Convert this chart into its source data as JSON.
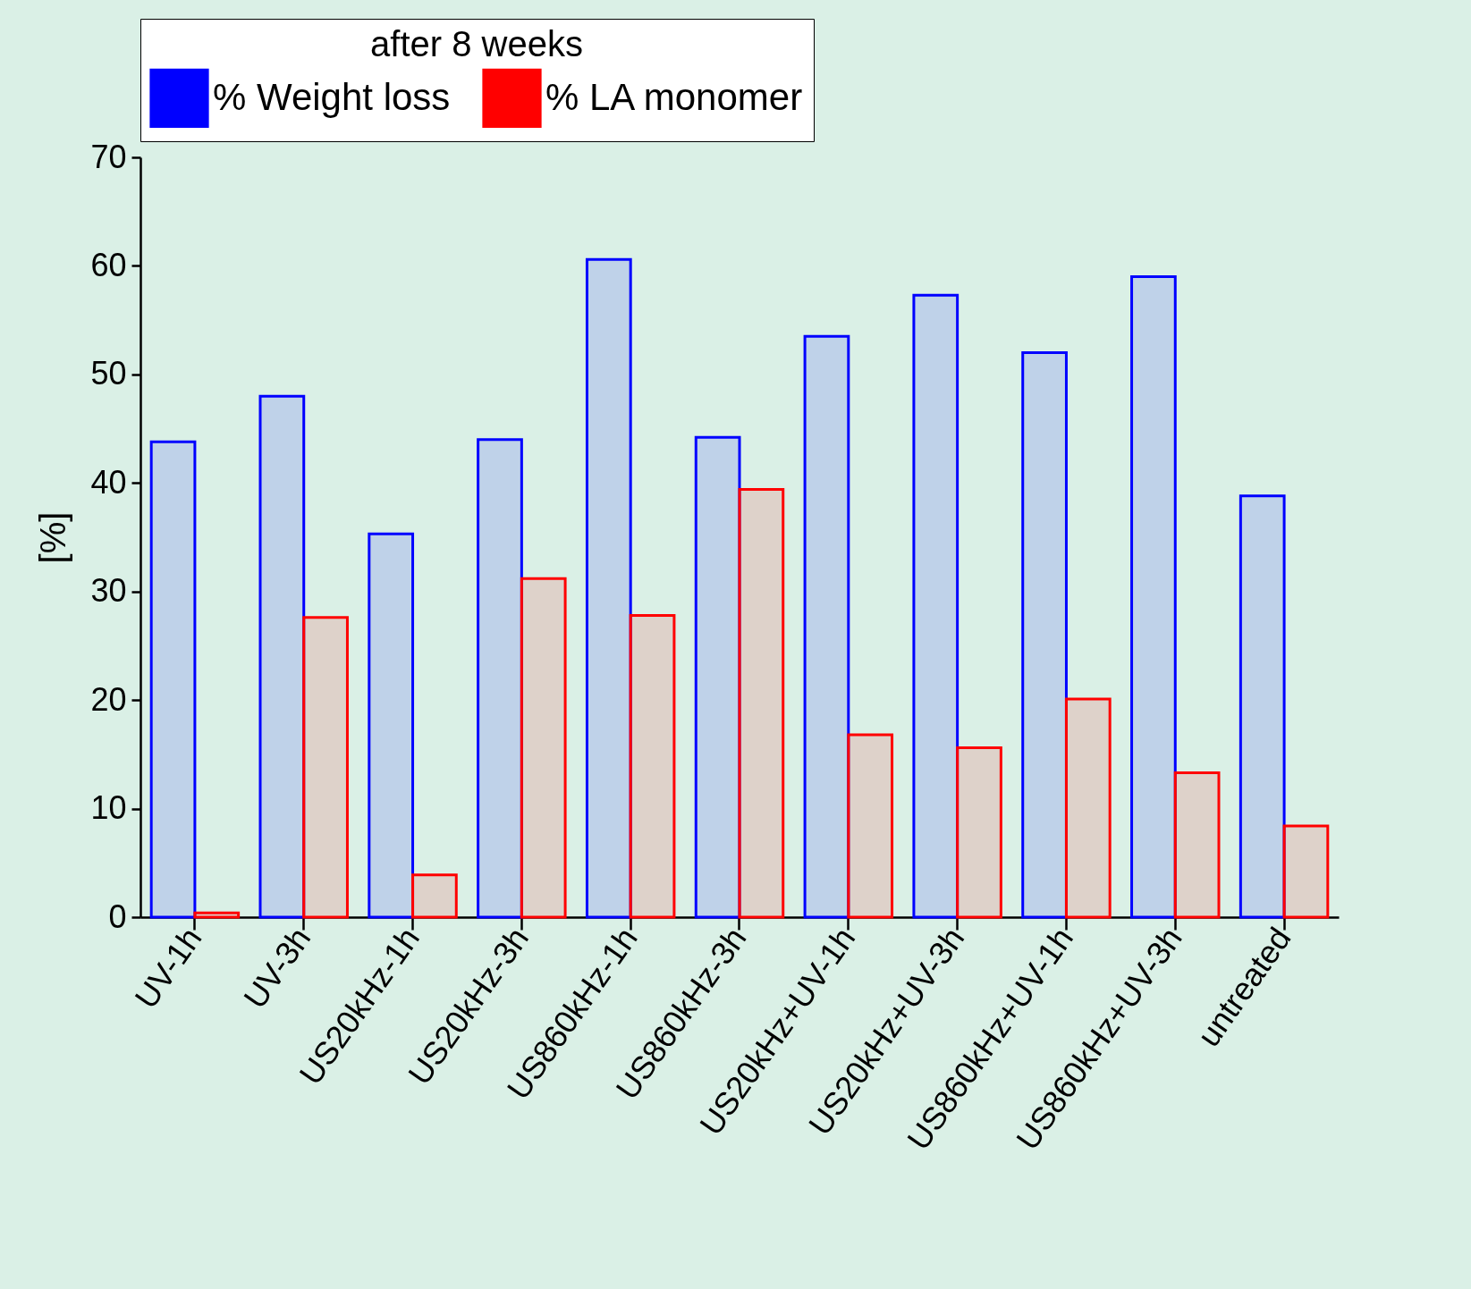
{
  "chart_data": {
    "type": "bar",
    "ylabel": "[%]",
    "legend_title": "after 8 weeks",
    "categories": [
      "UV-1h",
      "UV-3h",
      "US20kHz-1h",
      "US20kHz-3h",
      "US860kHz-1h",
      "US860kHz-3h",
      "US20kHz+UV-1h",
      "US20kHz+UV-3h",
      "US860kHz+UV-1h",
      "US860kHz+UV-3h",
      "untreated"
    ],
    "series": [
      {
        "name": "% Weight loss",
        "color": "#0000ff",
        "values": [
          43.8,
          48.0,
          35.3,
          44.0,
          60.6,
          44.2,
          53.5,
          57.3,
          52.0,
          59.0,
          38.8
        ]
      },
      {
        "name": "% LA monomer",
        "color": "#ff0000",
        "values": [
          0.4,
          27.6,
          3.9,
          31.2,
          27.8,
          39.4,
          16.8,
          15.6,
          20.1,
          13.3,
          8.4
        ]
      }
    ],
    "ylim": [
      0,
      70
    ],
    "yticks": [
      0,
      10,
      20,
      30,
      40,
      50,
      60,
      70
    ],
    "grid": false,
    "legend": "top"
  }
}
